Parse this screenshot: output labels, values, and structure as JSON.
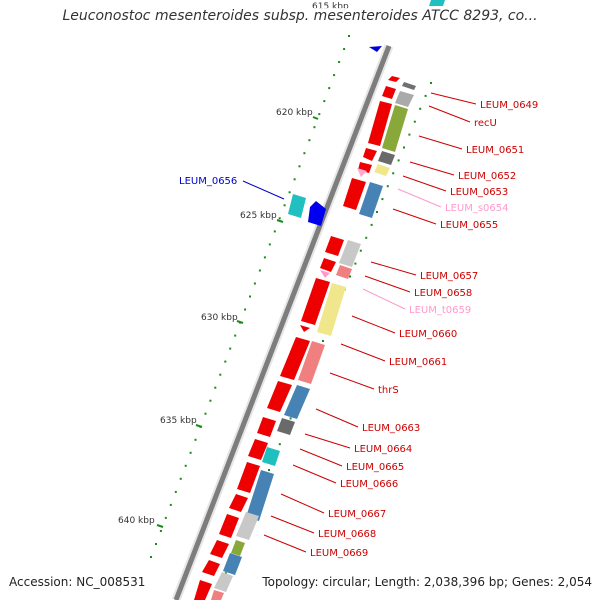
{
  "title": "Leuconostoc mesenteroides subsp. mesenteroides ATCC 8293, co...",
  "footer": {
    "accession": "Accession: NC_008531",
    "stats": "Topology: circular; Length: 2,038,396 bp; Genes: 2,054"
  },
  "colors": {
    "backbone": "#808080",
    "tick": "#1a8a1a",
    "red_gene": "#ee0000",
    "forward_label": "#cc0000",
    "reverse_label": "#0000cc",
    "rna_label": "#ff99cc"
  },
  "scale_labels": [
    "615 kbp",
    "620 kbp",
    "625 kbp",
    "630 kbp",
    "635 kbp",
    "640 kbp"
  ],
  "genes": [
    {
      "label": "LEUM_0649",
      "color": "#aaaaaa",
      "strand": "forward"
    },
    {
      "label": "recU",
      "color": "#88a83a",
      "strand": "forward"
    },
    {
      "label": "LEUM_0651",
      "color": "#6a6a6a",
      "strand": "forward"
    },
    {
      "label": "LEUM_0652",
      "color": "#f0e68c",
      "strand": "forward"
    },
    {
      "label": "LEUM_0653",
      "color": "#ee0000",
      "strand": "forward"
    },
    {
      "label": "LEUM_s0654",
      "color": "#ffaad4",
      "strand": "rna"
    },
    {
      "label": "LEUM_0655",
      "color": "#4682b4",
      "strand": "forward"
    },
    {
      "label": "LEUM_0656",
      "color": "#0000ee",
      "strand": "reverse"
    },
    {
      "label": "LEUM_0657",
      "color": "#c8c8c8",
      "strand": "forward"
    },
    {
      "label": "LEUM_0658",
      "color": "#f08080",
      "strand": "forward"
    },
    {
      "label": "LEUM_t0659",
      "color": "#ff99cc",
      "strand": "rna"
    },
    {
      "label": "LEUM_0660",
      "color": "#f0e68c",
      "strand": "forward"
    },
    {
      "label": "LEUM_0661",
      "color": "#ee0000",
      "strand": "forward"
    },
    {
      "label": "thrS",
      "color": "#f08080",
      "strand": "forward"
    },
    {
      "label": "LEUM_0663",
      "color": "#4682b4",
      "strand": "forward"
    },
    {
      "label": "LEUM_0664",
      "color": "#6a6a6a",
      "strand": "forward"
    },
    {
      "label": "LEUM_0665",
      "color": "#20c0c0",
      "strand": "forward"
    },
    {
      "label": "LEUM_0666",
      "color": "#ee0000",
      "strand": "forward"
    },
    {
      "label": "LEUM_0667",
      "color": "#4682b4",
      "strand": "forward"
    },
    {
      "label": "LEUM_0668",
      "color": "#c8c8c8",
      "strand": "forward"
    },
    {
      "label": "LEUM_0669",
      "color": "#88a83a",
      "strand": "forward"
    }
  ]
}
